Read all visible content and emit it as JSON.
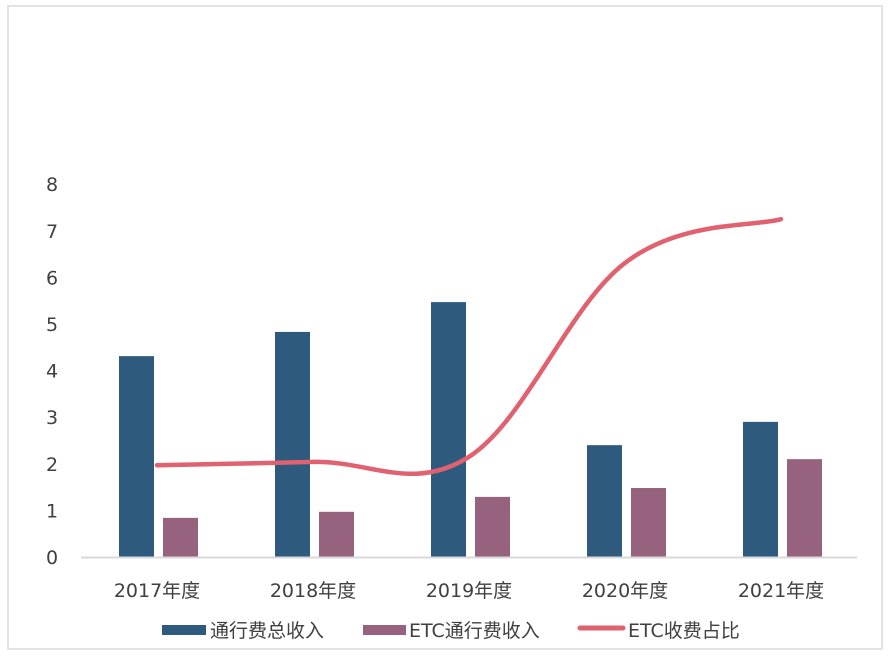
{
  "chart_data": {
    "type": "bar",
    "title": "",
    "xlabel": "",
    "ylabel": "",
    "ylim": [
      0,
      8
    ],
    "yticks": [
      0,
      1,
      2,
      3,
      4,
      5,
      6,
      7,
      8
    ],
    "grid": false,
    "legend_position": "bottom",
    "categories": [
      "2017年度",
      "2018年度",
      "2019年度",
      "2020年度",
      "2021年度"
    ],
    "series": [
      {
        "name": "通行费总收入",
        "type": "bar",
        "color": "#2E5A7E",
        "values": [
          4.31,
          4.83,
          5.47,
          2.4,
          2.9
        ]
      },
      {
        "name": "ETC通行费收入",
        "type": "bar",
        "color": "#97627E",
        "values": [
          0.84,
          0.97,
          1.29,
          1.48,
          2.1
        ]
      },
      {
        "name": "ETC收费占比",
        "type": "line",
        "smooth": true,
        "color": "#E0616F",
        "values": [
          1.97,
          2.04,
          2.15,
          6.31,
          7.25
        ]
      }
    ]
  },
  "colors": {
    "axis": "#d9d9d9",
    "frame": "#e3e3e3",
    "text": "#404040"
  }
}
